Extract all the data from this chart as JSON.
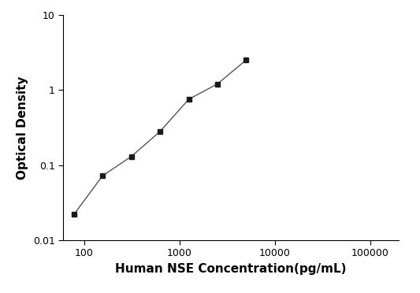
{
  "x": [
    78,
    156,
    312,
    625,
    1250,
    2500,
    5000
  ],
  "y": [
    0.022,
    0.072,
    0.13,
    0.28,
    0.75,
    1.2,
    2.5
  ],
  "xlabel": "Human NSE Concentration(pg/mL)",
  "ylabel": "Optical Density",
  "xlim": [
    60,
    200000
  ],
  "ylim": [
    0.01,
    10
  ],
  "marker": "s",
  "marker_color": "#1a1a1a",
  "line_color": "#555555",
  "marker_size": 5,
  "line_width": 1.0,
  "background_color": "#ffffff",
  "xlabel_fontsize": 11,
  "ylabel_fontsize": 11,
  "tick_fontsize": 9,
  "x_ticks": [
    100,
    1000,
    10000,
    100000
  ],
  "y_ticks": [
    0.01,
    0.1,
    1,
    10
  ]
}
